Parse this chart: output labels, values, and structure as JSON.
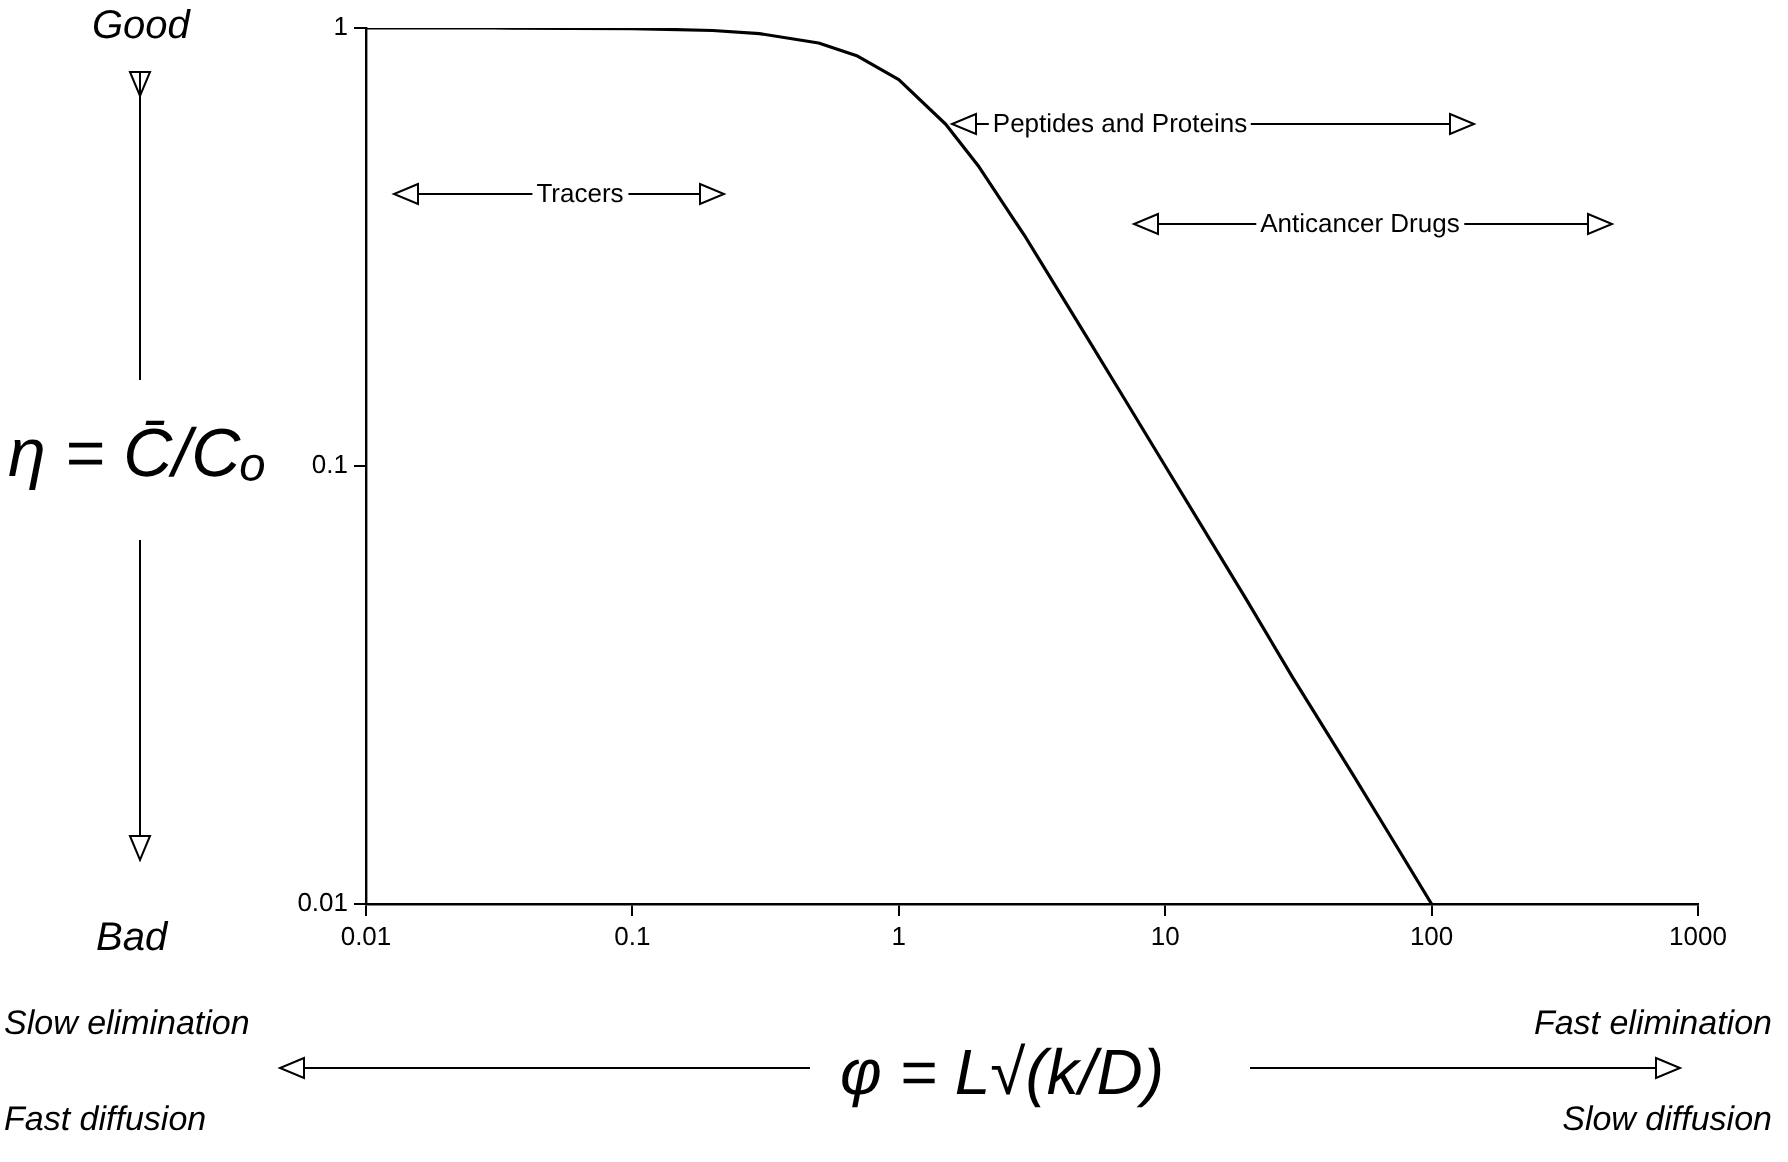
{
  "chart_data": {
    "type": "line",
    "xlabel": "φ = L√(k/D)",
    "ylabel": "η = C̄/Cₒ",
    "x": [
      0.01,
      0.03,
      0.1,
      0.2,
      0.3,
      0.5,
      0.7,
      1,
      1.5,
      2,
      3,
      5,
      7,
      10,
      20,
      30,
      50,
      70,
      100
    ],
    "series": [
      {
        "color": "#000000",
        "values": [
          1.0,
          1.0,
          0.997,
          0.987,
          0.971,
          0.924,
          0.863,
          0.762,
          0.603,
          0.482,
          0.332,
          0.2,
          0.143,
          0.1,
          0.05,
          0.033,
          0.02,
          0.0143,
          0.01
        ]
      }
    ],
    "log": "xy",
    "xlim": [
      0.01,
      1000
    ],
    "xticks": [
      0.01,
      0.1,
      1,
      10,
      100,
      1000
    ],
    "ylim": [
      0.01,
      1
    ],
    "yticks": [
      0.01,
      0.1,
      1
    ],
    "grid": false,
    "legend": false,
    "marker": "none",
    "line_style": "solid",
    "annotations": [
      "Tracers",
      "Peptides and Proteins",
      "Anticancer Drugs",
      "Good",
      "Bad",
      "Slow elimination",
      "Fast diffusion",
      "Fast elimination",
      "Slow diffusion"
    ]
  }
}
